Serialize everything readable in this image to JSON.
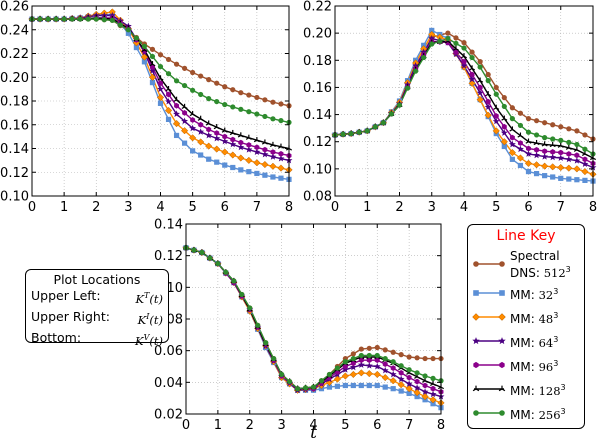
{
  "chart_data": [
    {
      "type": "line",
      "id": "upper-left",
      "title": "",
      "xlabel": "",
      "ylabel": "",
      "xlim": [
        0,
        8
      ],
      "ylim": [
        0.1,
        0.26
      ],
      "xticks": [
        0,
        1,
        2,
        3,
        4,
        5,
        6,
        7,
        8
      ],
      "yticks": [
        0.1,
        0.12,
        0.14,
        0.16,
        0.18,
        0.2,
        0.22,
        0.24,
        0.26
      ],
      "grid": true,
      "x": [
        0,
        0.5,
        1,
        1.5,
        2,
        2.5,
        3,
        3.5,
        4,
        4.5,
        5,
        5.5,
        6,
        6.5,
        7,
        7.5,
        8
      ],
      "series": [
        {
          "key": "dns512",
          "values": [
            0.249,
            0.249,
            0.249,
            0.249,
            0.249,
            0.248,
            0.239,
            0.228,
            0.219,
            0.211,
            0.204,
            0.198,
            0.192,
            0.187,
            0.183,
            0.179,
            0.176
          ]
        },
        {
          "key": "mm32",
          "values": [
            0.249,
            0.249,
            0.249,
            0.25,
            0.252,
            0.253,
            0.237,
            0.213,
            0.178,
            0.151,
            0.138,
            0.131,
            0.126,
            0.122,
            0.119,
            0.116,
            0.114
          ]
        },
        {
          "key": "mm48",
          "values": [
            0.249,
            0.249,
            0.249,
            0.25,
            0.253,
            0.255,
            0.241,
            0.217,
            0.183,
            0.161,
            0.149,
            0.142,
            0.137,
            0.132,
            0.128,
            0.125,
            0.122
          ]
        },
        {
          "key": "mm64",
          "values": [
            0.249,
            0.249,
            0.249,
            0.25,
            0.252,
            0.252,
            0.243,
            0.221,
            0.19,
            0.169,
            0.157,
            0.151,
            0.146,
            0.141,
            0.137,
            0.133,
            0.13
          ]
        },
        {
          "key": "mm96",
          "values": [
            0.249,
            0.249,
            0.249,
            0.249,
            0.25,
            0.25,
            0.241,
            0.222,
            0.195,
            0.176,
            0.164,
            0.156,
            0.15,
            0.145,
            0.141,
            0.137,
            0.134
          ]
        },
        {
          "key": "mm128",
          "values": [
            0.249,
            0.249,
            0.249,
            0.249,
            0.25,
            0.249,
            0.241,
            0.223,
            0.199,
            0.181,
            0.169,
            0.161,
            0.155,
            0.151,
            0.147,
            0.143,
            0.14
          ]
        },
        {
          "key": "mm256",
          "values": [
            0.249,
            0.249,
            0.249,
            0.249,
            0.249,
            0.248,
            0.24,
            0.226,
            0.209,
            0.197,
            0.189,
            0.182,
            0.177,
            0.173,
            0.169,
            0.165,
            0.162
          ]
        }
      ]
    },
    {
      "type": "line",
      "id": "upper-right",
      "title": "",
      "xlabel": "",
      "ylabel": "",
      "xlim": [
        0,
        8
      ],
      "ylim": [
        0.08,
        0.22
      ],
      "xticks": [
        0,
        1,
        2,
        3,
        4,
        5,
        6,
        7,
        8
      ],
      "yticks": [
        0.08,
        0.1,
        0.12,
        0.14,
        0.16,
        0.18,
        0.2,
        0.22
      ],
      "grid": true,
      "x": [
        0,
        0.5,
        1,
        1.5,
        2,
        2.5,
        3,
        3.5,
        4,
        4.5,
        5,
        5.5,
        6,
        6.5,
        7,
        7.5,
        8
      ],
      "series": [
        {
          "key": "dns512",
          "values": [
            0.125,
            0.126,
            0.128,
            0.134,
            0.147,
            0.174,
            0.197,
            0.2,
            0.193,
            0.179,
            0.16,
            0.145,
            0.137,
            0.134,
            0.131,
            0.128,
            0.122
          ]
        },
        {
          "key": "mm32",
          "values": [
            0.125,
            0.126,
            0.128,
            0.134,
            0.15,
            0.18,
            0.202,
            0.196,
            0.175,
            0.151,
            0.126,
            0.107,
            0.098,
            0.095,
            0.093,
            0.092,
            0.091
          ]
        },
        {
          "key": "mm48",
          "values": [
            0.125,
            0.126,
            0.128,
            0.134,
            0.149,
            0.178,
            0.199,
            0.195,
            0.175,
            0.151,
            0.128,
            0.112,
            0.104,
            0.102,
            0.101,
            0.1,
            0.096
          ]
        },
        {
          "key": "mm64",
          "values": [
            0.125,
            0.126,
            0.128,
            0.134,
            0.148,
            0.176,
            0.196,
            0.193,
            0.176,
            0.156,
            0.135,
            0.118,
            0.111,
            0.109,
            0.108,
            0.106,
            0.101
          ]
        },
        {
          "key": "mm96",
          "values": [
            0.125,
            0.126,
            0.128,
            0.134,
            0.147,
            0.174,
            0.194,
            0.193,
            0.179,
            0.16,
            0.139,
            0.123,
            0.115,
            0.113,
            0.112,
            0.11,
            0.104
          ]
        },
        {
          "key": "mm128",
          "values": [
            0.125,
            0.126,
            0.128,
            0.134,
            0.147,
            0.173,
            0.193,
            0.194,
            0.183,
            0.165,
            0.145,
            0.129,
            0.12,
            0.118,
            0.117,
            0.114,
            0.108
          ]
        },
        {
          "key": "mm256",
          "values": [
            0.125,
            0.126,
            0.128,
            0.134,
            0.147,
            0.172,
            0.192,
            0.196,
            0.189,
            0.175,
            0.155,
            0.137,
            0.127,
            0.123,
            0.121,
            0.118,
            0.111
          ]
        }
      ]
    },
    {
      "type": "line",
      "id": "bottom",
      "title": "",
      "xlabel": "t",
      "ylabel": "",
      "xlim": [
        0,
        8
      ],
      "ylim": [
        0.02,
        0.14
      ],
      "xticks": [
        0,
        1,
        2,
        3,
        4,
        5,
        6,
        7,
        8
      ],
      "yticks": [
        0.02,
        0.04,
        0.06,
        0.08,
        0.1,
        0.12,
        0.14
      ],
      "grid": true,
      "x": [
        0,
        0.5,
        1,
        1.5,
        2,
        2.5,
        3,
        3.5,
        4,
        4.5,
        5,
        5.5,
        6,
        6.5,
        7,
        7.5,
        8
      ],
      "series": [
        {
          "key": "dns512",
          "values": [
            0.125,
            0.122,
            0.115,
            0.104,
            0.087,
            0.065,
            0.045,
            0.036,
            0.037,
            0.045,
            0.055,
            0.061,
            0.062,
            0.059,
            0.056,
            0.055,
            0.055
          ]
        },
        {
          "key": "mm32",
          "values": [
            0.125,
            0.122,
            0.115,
            0.103,
            0.085,
            0.062,
            0.043,
            0.035,
            0.035,
            0.037,
            0.038,
            0.038,
            0.038,
            0.036,
            0.033,
            0.029,
            0.024
          ]
        },
        {
          "key": "mm48",
          "values": [
            0.125,
            0.122,
            0.115,
            0.103,
            0.085,
            0.063,
            0.043,
            0.035,
            0.036,
            0.04,
            0.044,
            0.046,
            0.045,
            0.041,
            0.036,
            0.031,
            0.027
          ]
        },
        {
          "key": "mm64",
          "values": [
            0.125,
            0.122,
            0.115,
            0.103,
            0.086,
            0.063,
            0.044,
            0.035,
            0.036,
            0.042,
            0.048,
            0.051,
            0.05,
            0.045,
            0.039,
            0.034,
            0.031
          ]
        },
        {
          "key": "mm96",
          "values": [
            0.125,
            0.122,
            0.115,
            0.103,
            0.086,
            0.064,
            0.044,
            0.036,
            0.036,
            0.043,
            0.05,
            0.054,
            0.054,
            0.049,
            0.043,
            0.038,
            0.034
          ]
        },
        {
          "key": "mm128",
          "values": [
            0.125,
            0.122,
            0.115,
            0.104,
            0.086,
            0.064,
            0.045,
            0.036,
            0.037,
            0.044,
            0.052,
            0.056,
            0.056,
            0.052,
            0.046,
            0.041,
            0.037
          ]
        },
        {
          "key": "mm256",
          "values": [
            0.125,
            0.122,
            0.115,
            0.104,
            0.087,
            0.065,
            0.045,
            0.036,
            0.037,
            0.045,
            0.053,
            0.057,
            0.057,
            0.053,
            0.048,
            0.044,
            0.041
          ]
        }
      ]
    }
  ],
  "legend": {
    "title": "Line Key",
    "title_color": "#ff0000",
    "entries": [
      {
        "key": "dns512",
        "label_line1": "Spectral",
        "label_prefix": "DNS:",
        "res": "512",
        "exp": "3",
        "color": "#a0522d",
        "marker": "circle"
      },
      {
        "key": "mm32",
        "label_prefix": "MM:",
        "res": "32",
        "exp": "3",
        "color": "#5b8fd6",
        "marker": "square"
      },
      {
        "key": "mm48",
        "label_prefix": "MM:",
        "res": "48",
        "exp": "3",
        "color": "#ff8c00",
        "marker": "diamond"
      },
      {
        "key": "mm64",
        "label_prefix": "MM:",
        "res": "64",
        "exp": "3",
        "color": "#4b0082",
        "marker": "star"
      },
      {
        "key": "mm96",
        "label_prefix": "MM:",
        "res": "96",
        "exp": "3",
        "color": "#8b008b",
        "marker": "hexagon"
      },
      {
        "key": "mm128",
        "label_prefix": "MM:",
        "res": "128",
        "exp": "3",
        "color": "#000000",
        "marker": "tri"
      },
      {
        "key": "mm256",
        "label_prefix": "MM:",
        "res": "256",
        "exp": "3",
        "color": "#2e8b2e",
        "marker": "circle"
      }
    ]
  },
  "locations": {
    "title": "Plot Locations",
    "rows": [
      {
        "label": "Upper Left:",
        "sym": "K",
        "sup": "T",
        "arg": "(t)"
      },
      {
        "label": "Upper Right:",
        "sym": "K",
        "sup": "I",
        "arg": "(t)"
      },
      {
        "label": "Bottom:",
        "sym": "K",
        "sup": "V",
        "arg": "(t)"
      }
    ]
  }
}
